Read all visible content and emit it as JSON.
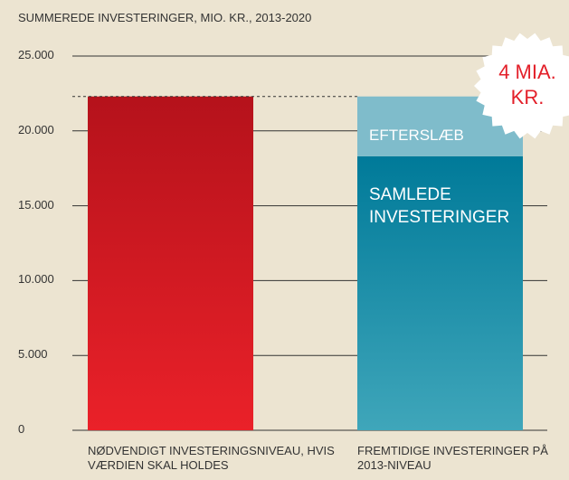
{
  "chart_data": {
    "type": "stacked-bar",
    "title": "SUMMEREDE INVESTERINGER, MIO. KR., 2013-2020",
    "categories": [
      "NØDVENDIGT INVESTERINGSNIVEAU, HVIS VÆRDIEN SKAL HOLDES",
      "FREMTIDIGE INVESTERINGER PÅ 2013-NIVEAU"
    ],
    "series": [
      {
        "color": "#d01820",
        "values": [
          22300,
          null
        ]
      },
      {
        "name": "SAMLEDE INVESTERINGER",
        "color": "#1b8aa6",
        "values": [
          null,
          18300
        ]
      },
      {
        "name": "EFTERSLÆB",
        "color": "#7fbccb",
        "values": [
          null,
          4000
        ]
      }
    ],
    "ylim": [
      0,
      25000
    ],
    "yticks": [
      {
        "value": 0,
        "label": "0"
      },
      {
        "value": 5000,
        "label": "5.000"
      },
      {
        "value": 10000,
        "label": "10.000"
      },
      {
        "value": 15000,
        "label": "15.000"
      },
      {
        "value": 20000,
        "label": "20.000"
      },
      {
        "value": 25000,
        "label": "25.000"
      }
    ],
    "annotation": "4 MIA. KR.",
    "grid": true
  }
}
